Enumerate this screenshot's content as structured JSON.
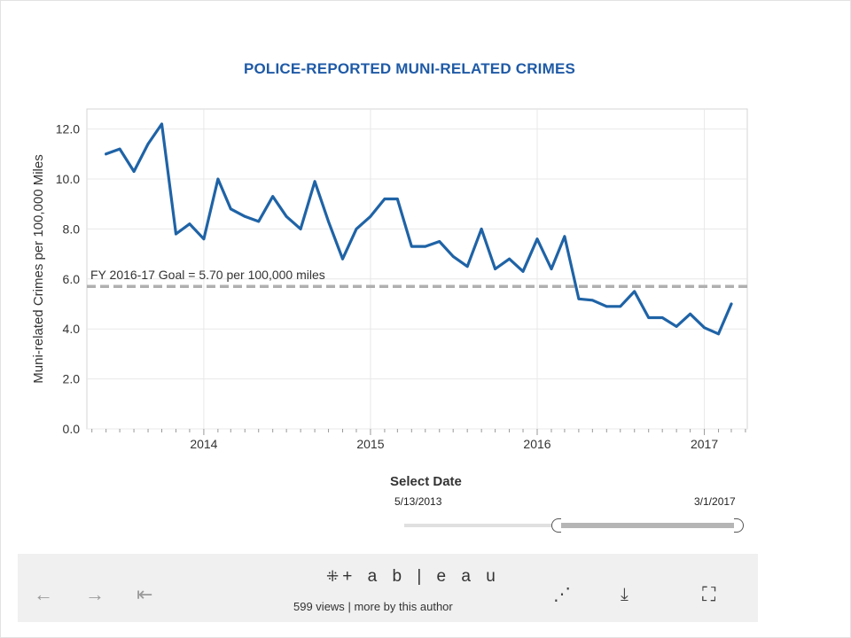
{
  "chart_data": {
    "type": "line",
    "title": "POLICE-REPORTED MUNI-RELATED CRIMES",
    "ylabel": "Muni-related Crimes per 100,000 Miles",
    "xlabel": "",
    "ylim": [
      0,
      12.8
    ],
    "xlim": [
      "2013-04-20",
      "2017-04-05"
    ],
    "y_ticks": [
      "0.0",
      "2.0",
      "4.0",
      "6.0",
      "8.0",
      "10.0",
      "12.0"
    ],
    "x_ticks": [
      "2014",
      "2015",
      "2016",
      "2017"
    ],
    "grid": true,
    "series": [
      {
        "color": "#1f63a6",
        "x": [
          "2013-06-01",
          "2013-07-01",
          "2013-08-01",
          "2013-09-01",
          "2013-10-01",
          "2013-11-01",
          "2013-12-01",
          "2014-01-01",
          "2014-02-01",
          "2014-03-01",
          "2014-04-01",
          "2014-05-01",
          "2014-06-01",
          "2014-07-01",
          "2014-08-01",
          "2014-09-01",
          "2014-10-01",
          "2014-11-01",
          "2014-12-01",
          "2015-01-01",
          "2015-02-01",
          "2015-03-01",
          "2015-04-01",
          "2015-05-01",
          "2015-06-01",
          "2015-07-01",
          "2015-08-01",
          "2015-09-01",
          "2015-10-01",
          "2015-11-01",
          "2015-12-01",
          "2016-01-01",
          "2016-02-01",
          "2016-03-01",
          "2016-04-01",
          "2016-05-01",
          "2016-06-01",
          "2016-07-01",
          "2016-08-01",
          "2016-09-01",
          "2016-10-01",
          "2016-11-01",
          "2016-12-01",
          "2017-01-01",
          "2017-02-01",
          "2017-03-01"
        ],
        "values": [
          11.0,
          11.2,
          10.3,
          11.4,
          12.2,
          7.8,
          8.2,
          7.6,
          10.0,
          8.8,
          8.5,
          8.3,
          9.3,
          8.5,
          8.0,
          9.9,
          8.3,
          6.8,
          8.0,
          8.5,
          9.2,
          9.2,
          7.3,
          7.3,
          7.5,
          6.9,
          6.5,
          8.0,
          6.4,
          6.8,
          6.3,
          7.6,
          6.4,
          7.7,
          5.2,
          5.15,
          4.9,
          4.9,
          5.5,
          4.45,
          4.45,
          4.1,
          4.6,
          4.05,
          3.8,
          5.0
        ]
      }
    ],
    "reference_line": {
      "value": 5.7,
      "label": "FY 2016-17 Goal = 5.70 per 100,000 miles",
      "color": "#b0b0b0"
    }
  },
  "filter": {
    "title": "Select Date",
    "start_label": "5/13/2013",
    "end_label": "3/1/2017"
  },
  "toolbar": {
    "logo_mark": "⁜",
    "logo_text": "+ a b | e a u",
    "views": "599 views",
    "separator": "|",
    "author_link": "more by this author",
    "back_icon": "←",
    "forward_icon": "→",
    "first_icon": "⇤",
    "share_icon": "⋰",
    "download_icon": "⤓",
    "fullscreen_icon": "⛶"
  }
}
